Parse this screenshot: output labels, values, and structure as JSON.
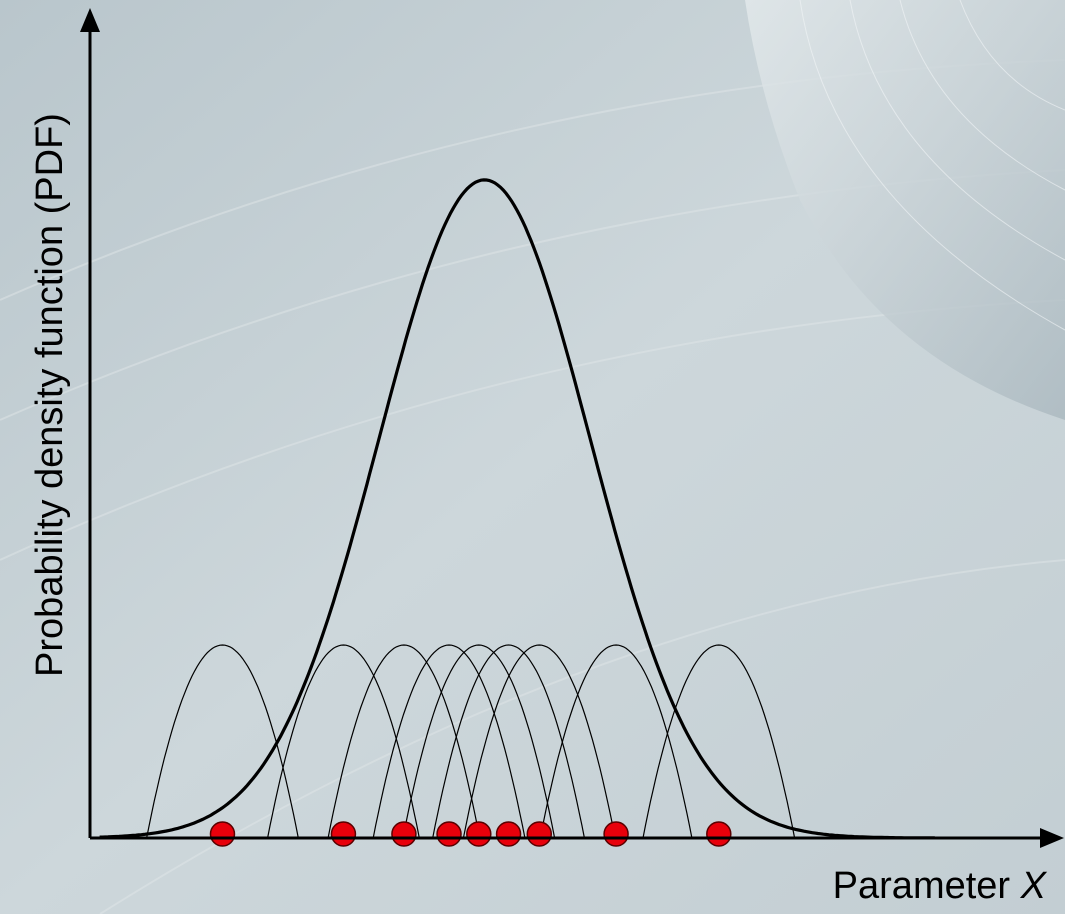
{
  "chart_data": {
    "type": "kde",
    "y_label": "Probability density function (PDF)",
    "x_label": "Parameter ",
    "x_label_var": "X",
    "samples": [
      1.38,
      2.64,
      3.27,
      3.74,
      4.05,
      4.36,
      4.68,
      5.48,
      6.55
    ],
    "sample_color": "#e8000b",
    "kernel_halfwidth": 0.79,
    "kernel_height": 1,
    "density": {
      "mean": 4.11,
      "sd": 1.1,
      "peak": 3.41
    },
    "xlim": [
      0,
      10
    ],
    "ylim": [
      0,
      4
    ]
  }
}
